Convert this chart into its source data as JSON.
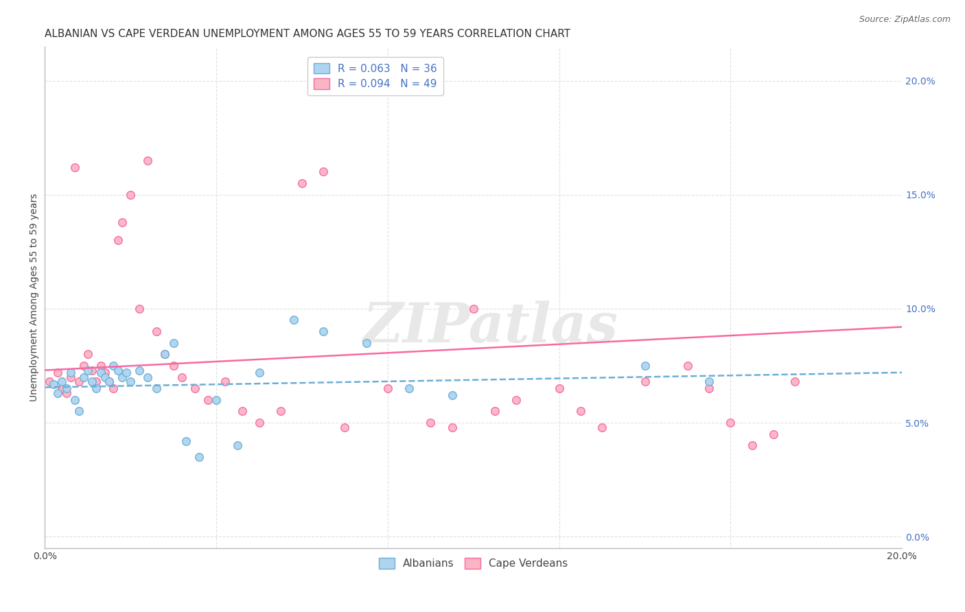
{
  "title": "ALBANIAN VS CAPE VERDEAN UNEMPLOYMENT AMONG AGES 55 TO 59 YEARS CORRELATION CHART",
  "source": "Source: ZipAtlas.com",
  "ylabel": "Unemployment Among Ages 55 to 59 years",
  "xlim": [
    0.0,
    0.2
  ],
  "ylim": [
    -0.005,
    0.215
  ],
  "xticks": [
    0.0,
    0.04,
    0.08,
    0.12,
    0.16,
    0.2
  ],
  "xtick_labels": [
    "0.0%",
    "",
    "",
    "",
    "",
    "20.0%"
  ],
  "yticks_right": [
    0.0,
    0.05,
    0.1,
    0.15,
    0.2
  ],
  "ytick_labels_right": [
    "0.0%",
    "5.0%",
    "10.0%",
    "15.0%",
    "20.0%"
  ],
  "legend_top": [
    {
      "label": "R = 0.063   N = 36",
      "facecolor": "#aed4f0",
      "edgecolor": "#6baed6"
    },
    {
      "label": "R = 0.094   N = 49",
      "facecolor": "#fbb4c3",
      "edgecolor": "#f768a1"
    }
  ],
  "legend_bottom": [
    {
      "label": "Albanians",
      "facecolor": "#aed4f0",
      "edgecolor": "#6baed6"
    },
    {
      "label": "Cape Verdeans",
      "facecolor": "#fbb4c3",
      "edgecolor": "#f768a1"
    }
  ],
  "albanian_scatter": {
    "x": [
      0.002,
      0.003,
      0.004,
      0.005,
      0.006,
      0.007,
      0.008,
      0.009,
      0.01,
      0.011,
      0.012,
      0.013,
      0.014,
      0.015,
      0.016,
      0.017,
      0.018,
      0.019,
      0.02,
      0.022,
      0.024,
      0.026,
      0.028,
      0.03,
      0.033,
      0.036,
      0.04,
      0.045,
      0.05,
      0.058,
      0.065,
      0.075,
      0.085,
      0.095,
      0.14,
      0.155
    ],
    "y": [
      0.067,
      0.063,
      0.068,
      0.065,
      0.072,
      0.06,
      0.055,
      0.07,
      0.073,
      0.068,
      0.065,
      0.072,
      0.07,
      0.068,
      0.075,
      0.073,
      0.07,
      0.072,
      0.068,
      0.073,
      0.07,
      0.065,
      0.08,
      0.085,
      0.042,
      0.035,
      0.06,
      0.04,
      0.072,
      0.095,
      0.09,
      0.085,
      0.065,
      0.062,
      0.075,
      0.068
    ],
    "color": "#aed4f0",
    "edgecolor": "#6baed6",
    "size": 70
  },
  "capeverdean_scatter": {
    "x": [
      0.001,
      0.003,
      0.004,
      0.005,
      0.006,
      0.007,
      0.008,
      0.009,
      0.01,
      0.011,
      0.012,
      0.013,
      0.014,
      0.015,
      0.016,
      0.017,
      0.018,
      0.02,
      0.022,
      0.024,
      0.026,
      0.028,
      0.03,
      0.032,
      0.035,
      0.038,
      0.042,
      0.046,
      0.05,
      0.055,
      0.06,
      0.065,
      0.07,
      0.08,
      0.09,
      0.095,
      0.1,
      0.105,
      0.11,
      0.12,
      0.125,
      0.13,
      0.14,
      0.15,
      0.155,
      0.16,
      0.165,
      0.17,
      0.175
    ],
    "y": [
      0.068,
      0.072,
      0.065,
      0.063,
      0.07,
      0.162,
      0.068,
      0.075,
      0.08,
      0.073,
      0.068,
      0.075,
      0.072,
      0.068,
      0.065,
      0.13,
      0.138,
      0.15,
      0.1,
      0.165,
      0.09,
      0.08,
      0.075,
      0.07,
      0.065,
      0.06,
      0.068,
      0.055,
      0.05,
      0.055,
      0.155,
      0.16,
      0.048,
      0.065,
      0.05,
      0.048,
      0.1,
      0.055,
      0.06,
      0.065,
      0.055,
      0.048,
      0.068,
      0.075,
      0.065,
      0.05,
      0.04,
      0.045,
      0.068
    ],
    "color": "#fbb4c3",
    "edgecolor": "#f768a1",
    "size": 70
  },
  "albanian_trend": {
    "x": [
      0.0,
      0.2
    ],
    "y": [
      0.0655,
      0.072
    ],
    "color": "#6baed6",
    "linewidth": 1.8,
    "linestyle": "--"
  },
  "capeverdean_trend": {
    "x": [
      0.0,
      0.2
    ],
    "y": [
      0.073,
      0.092
    ],
    "color": "#f768a1",
    "linewidth": 1.8,
    "linestyle": "-"
  },
  "watermark_text": "ZIPatlas",
  "watermark_color": "#e8e8e8",
  "background_color": "#ffffff",
  "grid_color": "#e0e0e0",
  "title_fontsize": 11,
  "axis_label_fontsize": 10,
  "tick_fontsize": 10,
  "source_fontsize": 9
}
